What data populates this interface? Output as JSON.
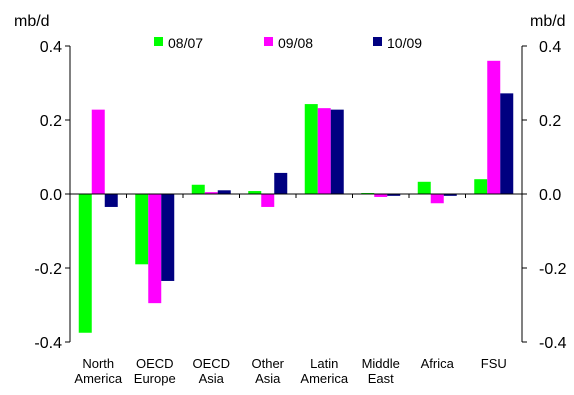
{
  "chart_data": {
    "type": "bar",
    "title": "",
    "xlabel": "",
    "ylabel_left": "mb/d",
    "ylabel_right": "mb/d",
    "ylim": [
      -0.4,
      0.4
    ],
    "yticks": [
      0.4,
      0.2,
      0.0,
      -0.2,
      -0.4
    ],
    "ytick_labels": [
      "0.4",
      "0.2",
      "0.0",
      "-0.2",
      "-0.4"
    ],
    "grid": false,
    "legend_position": "top",
    "categories": [
      [
        "North",
        "America"
      ],
      [
        "OECD",
        "Europe"
      ],
      [
        "OECD",
        "Asia"
      ],
      [
        "Other",
        "Asia"
      ],
      [
        "Latin",
        "America"
      ],
      [
        "Middle",
        "East"
      ],
      [
        "Africa"
      ],
      [
        "FSU"
      ]
    ],
    "series": [
      {
        "name": "08/07",
        "color": "#00ff00",
        "values": [
          -0.375,
          -0.19,
          0.025,
          0.008,
          0.243,
          0.0,
          0.033,
          0.04
        ]
      },
      {
        "name": "09/08",
        "color": "#ff00ff",
        "values": [
          0.228,
          -0.295,
          0.005,
          -0.035,
          0.232,
          -0.008,
          -0.025,
          0.36
        ]
      },
      {
        "name": "10/09",
        "color": "#000080",
        "values": [
          -0.035,
          -0.235,
          0.01,
          0.057,
          0.228,
          -0.005,
          -0.005,
          0.272
        ]
      }
    ]
  }
}
